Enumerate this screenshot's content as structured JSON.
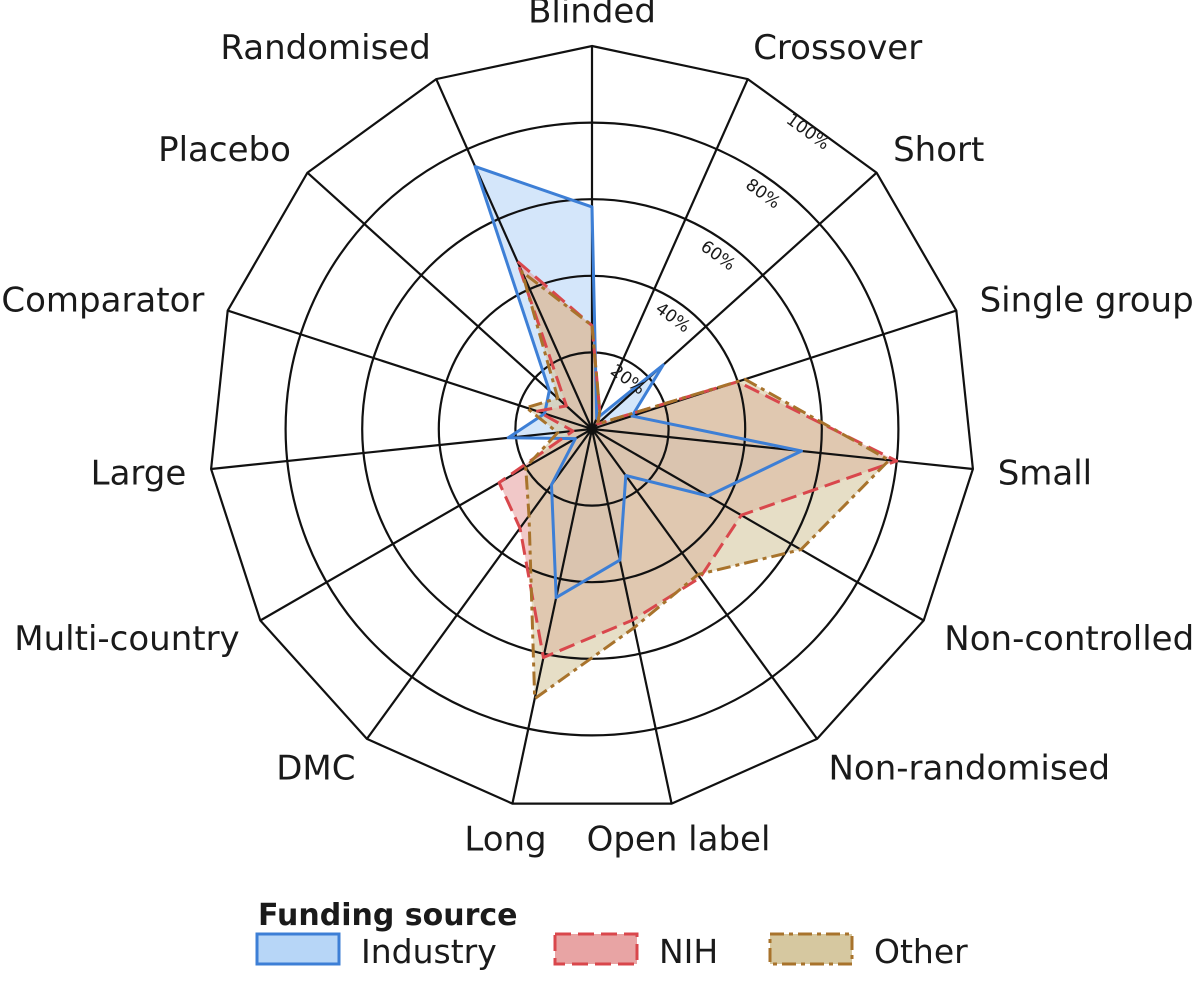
{
  "chart_data": {
    "type": "radar",
    "categories": [
      "Blinded",
      "Crossover",
      "Short",
      "Single group",
      "Small",
      "Non-controlled",
      "Non-randomised",
      "Open label",
      "Long",
      "DMC",
      "Multi-country",
      "Large",
      "Comparator",
      "Placebo",
      "Randomised"
    ],
    "r_ticks": [
      20,
      40,
      60,
      80,
      100
    ],
    "r_tick_labels": [
      "20%",
      "40%",
      "60%",
      "80%",
      "100%"
    ],
    "rlim": [
      0,
      100
    ],
    "legend_title": "Funding source",
    "series": [
      {
        "name": "Industry",
        "line_style": "solid",
        "stroke": "#3d7fd6",
        "fill": "#b7d6f7",
        "values": [
          58,
          3,
          25,
          11,
          55,
          35,
          15,
          35,
          45,
          18,
          5,
          22,
          13,
          15,
          75
        ]
      },
      {
        "name": "NIH",
        "line_style": "dashed",
        "stroke": "#d9474c",
        "fill": "#e8a4a4",
        "values": [
          27,
          5,
          2,
          40,
          80,
          45,
          48,
          51,
          61,
          32,
          28,
          5,
          15,
          9,
          48
        ]
      },
      {
        "name": "Other",
        "line_style": "dashdot",
        "stroke": "#a8732c",
        "fill": "#d6c8a0",
        "values": [
          27,
          5,
          2,
          42,
          78,
          63,
          47,
          53,
          72,
          28,
          20,
          9,
          18,
          12,
          45
        ]
      }
    ]
  }
}
